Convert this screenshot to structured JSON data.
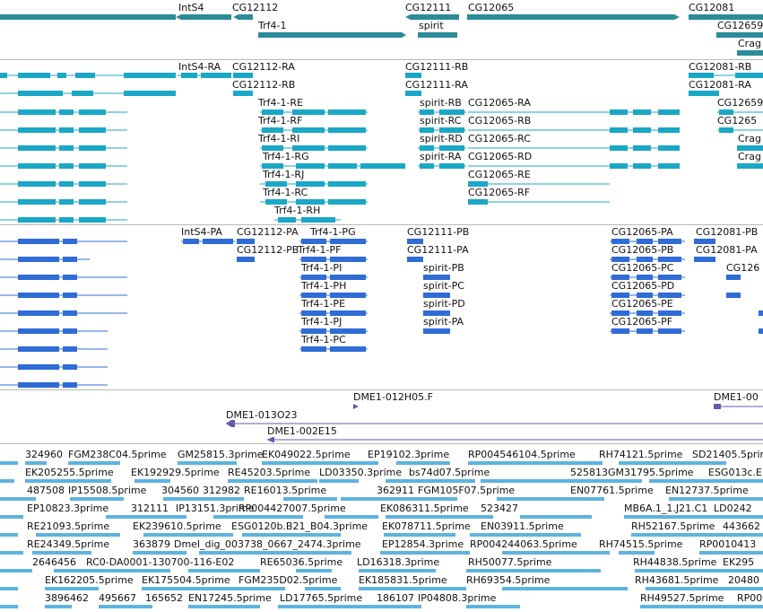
{
  "colors": {
    "gene": "#2b8c97",
    "flybase": "#1ba7c6",
    "refseq": "#2f6cd6",
    "clone": "#6a58a8",
    "est": "#5db4de",
    "separator": "#b8b8b8",
    "text": "#111111"
  },
  "tracks": [
    {
      "name": "gene-span-track",
      "color": "gene",
      "labels": [
        "IntS4",
        "CG12112",
        "Trf4-1",
        "CG12111",
        "spirit",
        "CG12065",
        "CG12081",
        "CG12659",
        "Crag"
      ]
    },
    {
      "name": "flybase-transcript-track",
      "color": "flybase",
      "labels": [
        "IntS4-RA",
        "CG12112-RA",
        "CG12112-RB",
        "Trf4-1-RE",
        "Trf4-1-RF",
        "Trf4-1-RI",
        "Trf4-1-RG",
        "Trf4-1-RJ",
        "Trf4-1-RC",
        "Trf4-1-RH",
        "CG12111-RB",
        "CG12111-RA",
        "spirit-RB",
        "spirit-RC",
        "spirit-RD",
        "spirit-RA",
        "CG12065-RA",
        "CG12065-RB",
        "CG12065-RC",
        "CG12065-RD",
        "CG12065-RE",
        "CG12065-RF",
        "CG12081-RB",
        "CG12081-RA",
        "CG12659",
        "CG1265",
        "Crag"
      ]
    },
    {
      "name": "refseq-transcript-track",
      "color": "refseq",
      "labels": [
        "IntS4-PA",
        "CG12112-PA",
        "CG12112-PB",
        "Trf4-1-PG",
        "Trf4-1-PF",
        "Trf4-1-PI",
        "Trf4-1-PH",
        "Trf4-1-PE",
        "Trf4-1-PJ",
        "Trf4-1-PC",
        "CG12111-PB",
        "CG12111-PA",
        "spirit-PB",
        "spirit-PC",
        "spirit-PD",
        "spirit-PA",
        "CG12065-PA",
        "CG12065-PB",
        "CG12065-PC",
        "CG12065-PD",
        "CG12065-PE",
        "CG12065-PF",
        "CG12081-PB",
        "CG12081-PA",
        "CG126"
      ]
    },
    {
      "name": "clone-track",
      "color": "clone",
      "labels": [
        "DME1-012H05.F",
        "DME1-00",
        "DME1-013O23",
        "DME1-002E15"
      ]
    },
    {
      "name": "est-track",
      "color": "est",
      "labels": [
        "324960",
        "FGM238C04.5prime",
        "GM25815.3prime",
        "EK049022.5prime",
        "EP19102.3prime",
        "RP004546104.5prime",
        "RH74121.5prime",
        "SD21405.5prime",
        "EK205255.5prime",
        "EK192929.5prime",
        "RE45203.5prime",
        "LD03350.3prime",
        "bs74d07.5prime",
        "525813",
        "GM31795.5prime",
        "ESG013c.E",
        "487508",
        "IP15508.5prime",
        "304560",
        "312982",
        "RE16013.5prime",
        "362911",
        "FGM105F07.5prime",
        "EN07761.5prime",
        "EN12737.5prime",
        "EP10823.3prime",
        "312111",
        "IP13151.3prime",
        "RP004427007.5prime",
        "EK086311.5prime",
        "523427",
        "MB6A.1_1.J21.C1",
        "LD0242",
        "RE21093.5prime",
        "EK239610.5prime",
        "ESG0120b.B21_B04.3prime",
        "EK078711.5prime",
        "EN03911.5prime",
        "RH52167.5prime",
        "443662",
        "RE24349.5prime",
        "363879",
        "Dmel_dig_003738_0667_2474.3prime",
        "EP12854.3prime",
        "RP004244063.5prime",
        "RH74515.5prime",
        "RP0010413",
        "2646456",
        "RC0-DA0001-130700-116-E02",
        "RE65036.5prime",
        "LD16318.3prime",
        "RH50077.5prime",
        "RH44838.5prime",
        "EK295",
        "EK162205.5prime",
        "EK175504.5prime",
        "FGM235D02.5prime",
        "EK185831.5prime",
        "RH69354.5prime",
        "RH43681.5prime",
        "20480",
        "3896462",
        "495667",
        "165652",
        "EN17245.5prime",
        "LD17765.5prime",
        "186107",
        "IP04808.3prime",
        "RH49527.5prime",
        "RP00"
      ]
    }
  ]
}
